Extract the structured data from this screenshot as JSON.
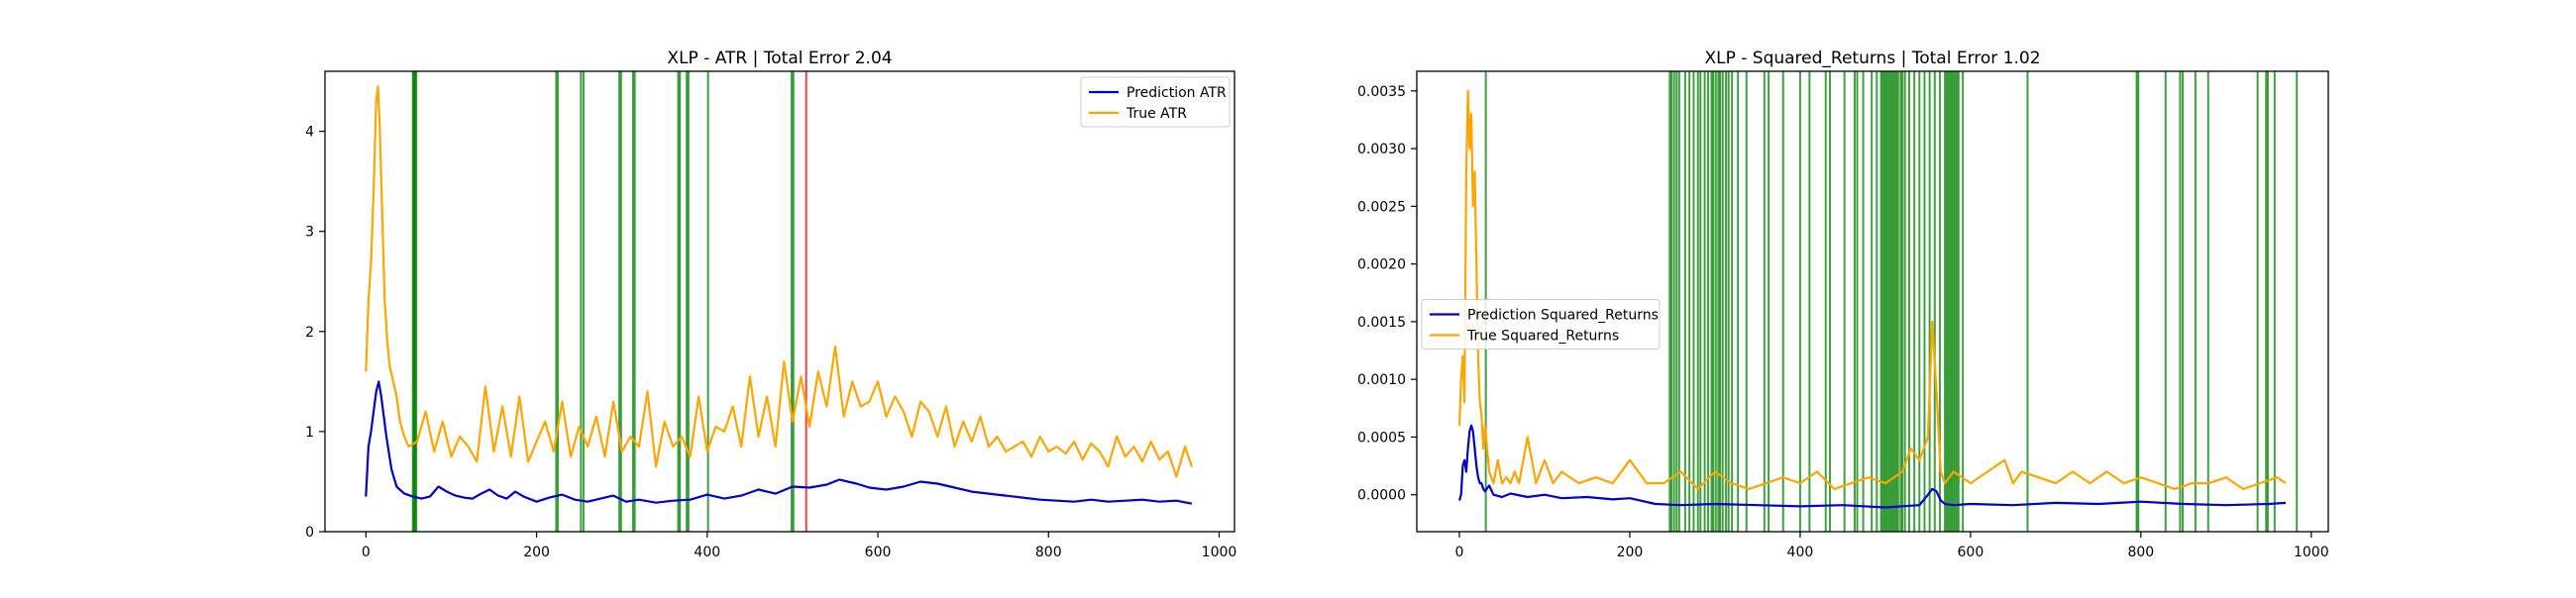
{
  "chart_data": [
    {
      "type": "line",
      "title": "XLP - ATR | Total Error 2.04",
      "xlabel": "",
      "ylabel": "",
      "xlim": [
        -48,
        1018
      ],
      "ylim": [
        0,
        4.6
      ],
      "x_ticks": [
        0,
        200,
        400,
        600,
        800,
        1000
      ],
      "y_ticks": [
        0,
        1,
        2,
        3,
        4
      ],
      "x_tick_labels": [
        "0",
        "200",
        "400",
        "600",
        "800",
        "1000"
      ],
      "y_tick_labels": [
        "0",
        "1",
        "2",
        "3",
        "4"
      ],
      "legend_position": "top-right",
      "grid": false,
      "series": [
        {
          "name": "Prediction ATR",
          "color": "#0000cc",
          "x": [
            0,
            3,
            6,
            9,
            12,
            15,
            18,
            21,
            24,
            30,
            36,
            45,
            55,
            65,
            75,
            85,
            95,
            105,
            115,
            125,
            135,
            145,
            155,
            165,
            175,
            185,
            200,
            215,
            230,
            245,
            260,
            275,
            290,
            305,
            320,
            340,
            360,
            380,
            400,
            420,
            440,
            460,
            480,
            500,
            520,
            540,
            555,
            565,
            575,
            590,
            610,
            630,
            650,
            670,
            690,
            710,
            730,
            750,
            770,
            790,
            810,
            830,
            850,
            870,
            890,
            910,
            930,
            950,
            968
          ],
          "values": [
            0.35,
            0.85,
            1.0,
            1.2,
            1.4,
            1.5,
            1.35,
            1.15,
            0.95,
            0.62,
            0.45,
            0.38,
            0.35,
            0.33,
            0.35,
            0.45,
            0.4,
            0.36,
            0.34,
            0.33,
            0.38,
            0.42,
            0.36,
            0.33,
            0.4,
            0.35,
            0.3,
            0.34,
            0.37,
            0.32,
            0.3,
            0.33,
            0.36,
            0.3,
            0.32,
            0.29,
            0.31,
            0.32,
            0.37,
            0.33,
            0.36,
            0.42,
            0.38,
            0.45,
            0.44,
            0.47,
            0.52,
            0.5,
            0.48,
            0.44,
            0.42,
            0.45,
            0.5,
            0.48,
            0.44,
            0.4,
            0.38,
            0.36,
            0.34,
            0.32,
            0.31,
            0.3,
            0.32,
            0.3,
            0.31,
            0.32,
            0.3,
            0.31,
            0.28
          ]
        },
        {
          "name": "True ATR",
          "color": "#ffa500",
          "x": [
            0,
            3,
            6,
            9,
            12,
            14,
            16,
            18,
            20,
            22,
            25,
            28,
            32,
            36,
            40,
            45,
            50,
            60,
            70,
            80,
            90,
            100,
            110,
            120,
            130,
            140,
            150,
            160,
            170,
            180,
            190,
            200,
            210,
            220,
            230,
            240,
            250,
            260,
            270,
            280,
            290,
            300,
            310,
            320,
            330,
            340,
            350,
            360,
            370,
            380,
            390,
            400,
            410,
            420,
            430,
            440,
            450,
            460,
            470,
            480,
            490,
            500,
            510,
            520,
            530,
            540,
            550,
            560,
            570,
            580,
            590,
            600,
            610,
            620,
            630,
            640,
            650,
            660,
            670,
            680,
            690,
            700,
            710,
            720,
            730,
            740,
            750,
            760,
            770,
            780,
            790,
            800,
            810,
            820,
            830,
            840,
            850,
            860,
            870,
            880,
            890,
            900,
            910,
            920,
            930,
            940,
            950,
            960,
            968
          ],
          "values": [
            1.6,
            2.3,
            2.7,
            3.4,
            4.3,
            4.45,
            4.1,
            3.5,
            2.9,
            2.3,
            1.9,
            1.65,
            1.5,
            1.35,
            1.1,
            0.95,
            0.85,
            0.9,
            1.2,
            0.8,
            1.1,
            0.75,
            0.95,
            0.85,
            0.7,
            1.45,
            0.8,
            1.25,
            0.75,
            1.35,
            0.7,
            0.9,
            1.1,
            0.8,
            1.3,
            0.75,
            1.05,
            0.85,
            1.15,
            0.75,
            1.3,
            0.8,
            0.95,
            0.85,
            1.4,
            0.65,
            1.1,
            0.85,
            0.95,
            0.75,
            1.35,
            0.8,
            1.05,
            1.0,
            1.25,
            0.85,
            1.55,
            0.95,
            1.35,
            0.85,
            1.7,
            1.1,
            1.55,
            1.05,
            1.6,
            1.25,
            1.85,
            1.15,
            1.5,
            1.25,
            1.3,
            1.5,
            1.15,
            1.35,
            1.2,
            0.95,
            1.3,
            1.2,
            0.95,
            1.25,
            0.85,
            1.1,
            0.9,
            1.15,
            0.85,
            0.95,
            0.8,
            0.85,
            0.9,
            0.75,
            0.95,
            0.8,
            0.85,
            0.78,
            0.9,
            0.72,
            0.88,
            0.8,
            0.65,
            0.95,
            0.75,
            0.85,
            0.7,
            0.9,
            0.72,
            0.8,
            0.55,
            0.85,
            0.65
          ]
        }
      ],
      "vlines": {
        "green": [
          55,
          56,
          57,
          58,
          59,
          223,
          225,
          252,
          255,
          297,
          299,
          313,
          315,
          366,
          368,
          376,
          378,
          401,
          499,
          501
        ],
        "red": [
          516
        ]
      }
    },
    {
      "type": "line",
      "title": "XLP - Squared_Returns | Total Error 1.02",
      "xlabel": "",
      "ylabel": "",
      "xlim": [
        -50,
        1020
      ],
      "ylim": [
        -0.00032,
        0.00367
      ],
      "x_ticks": [
        0,
        200,
        400,
        600,
        800,
        1000
      ],
      "y_ticks": [
        0.0,
        0.0005,
        0.001,
        0.0015,
        0.002,
        0.0025,
        0.003,
        0.0035
      ],
      "x_tick_labels": [
        "0",
        "200",
        "400",
        "600",
        "800",
        "1000"
      ],
      "y_tick_labels": [
        "0.0000",
        "0.0005",
        "0.0010",
        "0.0015",
        "0.0020",
        "0.0025",
        "0.0030",
        "0.0035"
      ],
      "legend_position": "center-left",
      "grid": false,
      "series": [
        {
          "name": "Prediction Squared_Returns",
          "color": "#0000cc",
          "x": [
            0,
            2,
            4,
            6,
            8,
            10,
            12,
            14,
            16,
            18,
            20,
            22,
            24,
            26,
            28,
            30,
            35,
            40,
            50,
            60,
            80,
            100,
            120,
            150,
            180,
            200,
            230,
            260,
            300,
            350,
            400,
            450,
            500,
            540,
            550,
            555,
            560,
            565,
            570,
            580,
            600,
            650,
            700,
            750,
            800,
            850,
            900,
            950,
            970
          ],
          "values": [
            -5e-05,
            0.0,
            0.00025,
            0.0003,
            0.0002,
            0.0004,
            0.00055,
            0.0006,
            0.00055,
            0.0004,
            0.00025,
            0.00015,
            0.0001,
            0.0001,
            5e-05,
            3e-05,
            8e-05,
            0.0,
            -2e-05,
            1e-05,
            -2e-05,
            0.0,
            -3e-05,
            -2e-05,
            -4e-05,
            -3e-05,
            -8e-05,
            -9e-05,
            -8e-05,
            -9e-05,
            -0.0001,
            -9e-05,
            -0.00011,
            -9e-05,
            0.0,
            5e-05,
            3e-05,
            -5e-05,
            -8e-05,
            -9e-05,
            -8e-05,
            -9e-05,
            -7e-05,
            -8e-05,
            -6e-05,
            -8e-05,
            -9e-05,
            -8e-05,
            -7e-05
          ]
        },
        {
          "name": "True Squared_Returns",
          "color": "#ffa500",
          "x": [
            0,
            2,
            4,
            6,
            8,
            10,
            12,
            14,
            16,
            18,
            20,
            22,
            24,
            26,
            28,
            30,
            35,
            40,
            45,
            50,
            55,
            60,
            65,
            70,
            80,
            90,
            100,
            110,
            120,
            140,
            160,
            180,
            200,
            220,
            240,
            260,
            280,
            300,
            320,
            340,
            360,
            380,
            400,
            420,
            440,
            460,
            480,
            500,
            520,
            530,
            540,
            550,
            555,
            560,
            565,
            570,
            580,
            600,
            620,
            640,
            650,
            660,
            680,
            700,
            720,
            740,
            760,
            780,
            800,
            820,
            840,
            860,
            880,
            900,
            920,
            940,
            960,
            970
          ],
          "values": [
            0.0006,
            0.001,
            0.0012,
            0.0008,
            0.0028,
            0.0035,
            0.003,
            0.0033,
            0.0025,
            0.0028,
            0.002,
            0.0012,
            0.0008,
            0.0007,
            0.0004,
            0.0006,
            0.0002,
            0.0001,
            0.0003,
            0.0001,
            0.00015,
            0.0001,
            0.0002,
            0.0001,
            0.0005,
            0.0001,
            0.0003,
            0.0001,
            0.0002,
            0.0001,
            0.00015,
            0.0001,
            0.0003,
            0.0001,
            0.0001,
            0.0002,
            5e-05,
            0.0002,
            0.0001,
            5e-05,
            0.0001,
            0.00015,
            0.0001,
            0.0002,
            5e-05,
            0.0001,
            0.00015,
            0.0001,
            0.0002,
            0.0004,
            0.0003,
            0.0005,
            0.0015,
            0.0009,
            0.0002,
            0.0001,
            0.0002,
            0.0001,
            0.0002,
            0.0003,
            0.0001,
            0.0002,
            0.00015,
            0.0001,
            0.0002,
            0.0001,
            0.0002,
            0.0001,
            0.00015,
            0.0001,
            5e-05,
            0.0001,
            0.0001,
            0.00015,
            5e-05,
            0.0001,
            0.00015,
            0.0001
          ]
        }
      ],
      "vlines": {
        "green": [
          31,
          247,
          249,
          252,
          255,
          258,
          265,
          270,
          275,
          280,
          283,
          288,
          292,
          296,
          298,
          301,
          304,
          306,
          309,
          313,
          316,
          320,
          327,
          337,
          358,
          363,
          380,
          400,
          411,
          430,
          435,
          452,
          464,
          467,
          474,
          484,
          490,
          495,
          497,
          499,
          501,
          503,
          505,
          507,
          509,
          511,
          513,
          515,
          518,
          520,
          523,
          528,
          534,
          540,
          546,
          552,
          558,
          564,
          570,
          572,
          574,
          576,
          578,
          580,
          582,
          584,
          586,
          591,
          667,
          795,
          797,
          829,
          846,
          849,
          864,
          879,
          937,
          947,
          949,
          957,
          983
        ]
      }
    }
  ]
}
